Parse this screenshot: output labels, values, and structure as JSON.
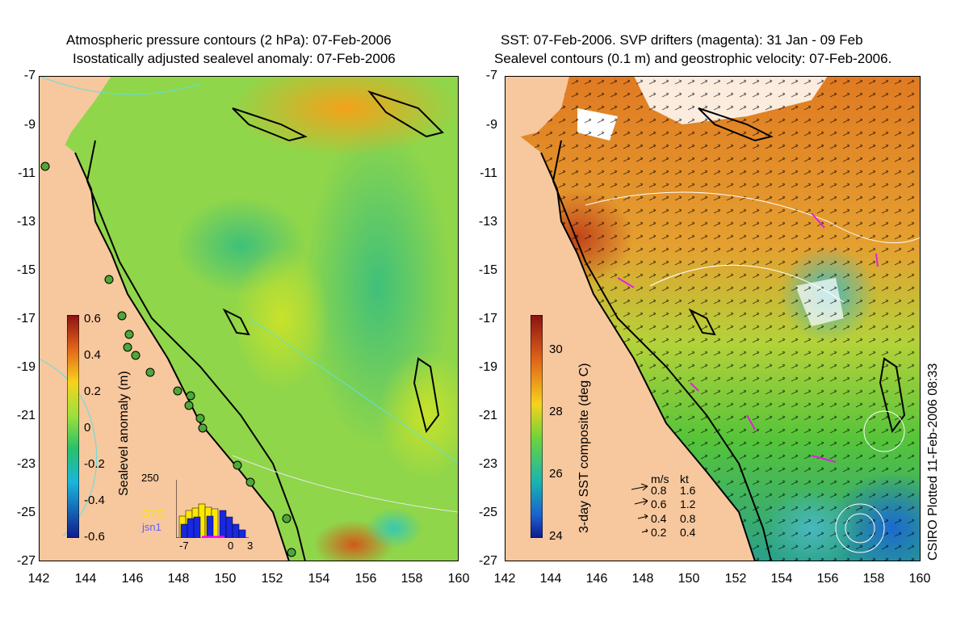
{
  "left_panel": {
    "title_line1": "Atmospheric pressure contours (2 hPa): 07-Feb-2006",
    "title_line2": "Isostatically adjusted sealevel anomaly: 07-Feb-2006",
    "colorbar_label": "Sealevel anomaly (m)",
    "colorbar_ticks": [
      "0.6",
      "0.4",
      "0.2",
      "0",
      "-0.2",
      "-0.4",
      "-0.6"
    ],
    "inset": {
      "ymax_label": "250",
      "legend_1": "GFO",
      "legend_2": "jsn1",
      "x_ticks": [
        "-7",
        "0",
        "3"
      ]
    }
  },
  "right_panel": {
    "title_line1": "SST: 07-Feb-2006. SVP drifters (magenta): 31 Jan - 09 Feb",
    "title_line2": "Sealevel contours (0.1 m) and geostrophic velocity: 07-Feb-2006.",
    "colorbar_label": "3-day SST composite (deg C)",
    "colorbar_ticks": [
      "30",
      "28",
      "26",
      "24"
    ],
    "velocity_legend": {
      "header_ms": "m/s",
      "header_kt": "kt",
      "rows": [
        {
          "ms": "0.8",
          "kt": "1.6"
        },
        {
          "ms": "0.6",
          "kt": "1.2"
        },
        {
          "ms": "0.4",
          "kt": "0.8"
        },
        {
          "ms": "0.2",
          "kt": "0.4"
        }
      ]
    },
    "credit": "CSIRO Plotted 11-Feb-2006 08:33"
  },
  "axes": {
    "y_ticks": [
      "-7",
      "-9",
      "-11",
      "-13",
      "-15",
      "-17",
      "-19",
      "-21",
      "-23",
      "-25",
      "-27"
    ],
    "x_ticks": [
      "142",
      "144",
      "146",
      "148",
      "150",
      "152",
      "154",
      "156",
      "158",
      "160"
    ]
  },
  "colors": {
    "land": "#f7c79e",
    "anomaly_base": "#8fd64a",
    "sst_warm": "#e07a22",
    "sst_mid": "#67c63a",
    "sst_cool": "#2a8fd0"
  }
}
